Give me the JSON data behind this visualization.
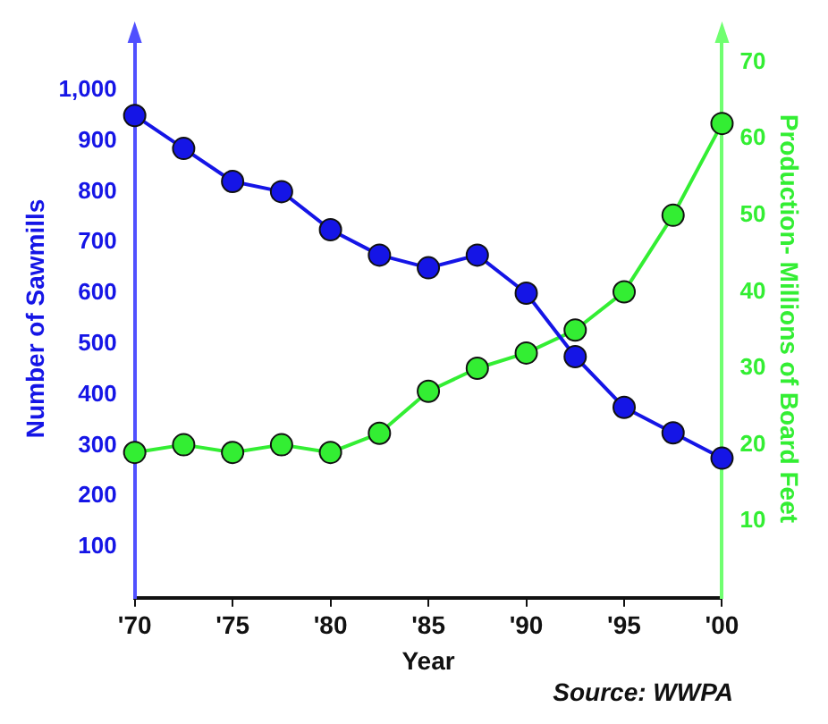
{
  "chart_data": {
    "type": "line",
    "xlabel": "Year",
    "ylabel": "Number of Sawmills",
    "y2label": "Production- Millions of Board Feet",
    "x": [
      1970,
      1972.5,
      1975,
      1977.5,
      1980,
      1982.5,
      1985,
      1987.5,
      1990,
      1992.5,
      1995,
      1997.5,
      2000
    ],
    "series": [
      {
        "color": "#1515e6",
        "values": [
          950,
          885,
          820,
          800,
          725,
          675,
          650,
          675,
          600,
          475,
          375,
          325,
          275
        ]
      },
      {
        "color": "#33ee33",
        "axis": "y2",
        "values": [
          19,
          20,
          19,
          20,
          19,
          21.5,
          27,
          30,
          32,
          35,
          40,
          50,
          62
        ]
      }
    ],
    "xlim": [
      1970,
      2000
    ],
    "xticks": [
      {
        "value": 1970,
        "label": "'70"
      },
      {
        "value": 1975,
        "label": "'75"
      },
      {
        "value": 1980,
        "label": "'80"
      },
      {
        "value": 1985,
        "label": "'85"
      },
      {
        "value": 1990,
        "label": "'90"
      },
      {
        "value": 1995,
        "label": "'95"
      },
      {
        "value": 2000,
        "label": "'00"
      }
    ],
    "ylim": [
      0,
      1100
    ],
    "yticks": [
      100,
      200,
      300,
      400,
      500,
      600,
      700,
      800,
      900,
      {
        "value": 1000,
        "label": "1,000"
      }
    ],
    "y2lim": [
      0,
      73
    ],
    "y2ticks": [
      10,
      20,
      30,
      40,
      50,
      60,
      70
    ],
    "annotations": [
      "Source: WWPA"
    ],
    "grid": false,
    "legend": false,
    "marker": "circle",
    "line_style": "solid"
  }
}
